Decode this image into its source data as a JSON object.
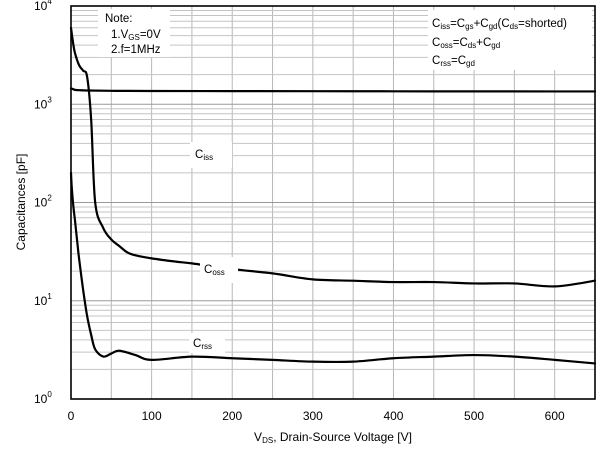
{
  "chart_data": {
    "type": "line",
    "xlabel": {
      "main": "V",
      "sub": "DS",
      "rest": ", Drain-Source Voltage [V]"
    },
    "ylabel": "Capacitances [pF]",
    "xlim": [
      0,
      650
    ],
    "ylim": [
      1,
      10000
    ],
    "log_y": true,
    "grid": true,
    "x_ticks": [
      "0",
      "100",
      "200",
      "300",
      "400",
      "500",
      "600"
    ],
    "y_ticks": [
      {
        "base": "10",
        "exp": "0"
      },
      {
        "base": "10",
        "exp": "1"
      },
      {
        "base": "10",
        "exp": "2"
      },
      {
        "base": "10",
        "exp": "3"
      },
      {
        "base": "10",
        "exp": "4"
      }
    ],
    "note": {
      "title": "Note:",
      "line1": {
        "prefix": "1.V",
        "sub": "GS",
        "suffix": "=0V"
      },
      "line2": "2.f=1MHz"
    },
    "formulas": [
      {
        "C": "C",
        "s1": "iss",
        "eq": "=C",
        "s2": "gs",
        "plus": "+C",
        "s3": "gd",
        "open": "(C",
        "s4": "ds",
        "close": "=shorted)"
      },
      {
        "C": "C",
        "s1": "oss",
        "eq": "=C",
        "s2": "ds",
        "plus": "+C",
        "s3": "gd"
      },
      {
        "C": "C",
        "s1": "rss",
        "eq": "=C",
        "s2": "gd"
      }
    ],
    "series": [
      {
        "name": {
          "main": "C",
          "sub": "iss"
        },
        "x": [
          0,
          1,
          3,
          5,
          10,
          20,
          50,
          100,
          200,
          300,
          400,
          500,
          600,
          650
        ],
        "y": [
          1450,
          1440,
          1420,
          1400,
          1390,
          1380,
          1370,
          1365,
          1360,
          1358,
          1355,
          1352,
          1350,
          1350
        ]
      },
      {
        "name": {
          "main": "C",
          "sub": "oss"
        },
        "x": [
          0,
          1,
          3,
          5,
          10,
          15,
          20,
          25,
          30,
          40,
          50,
          60,
          70,
          80,
          100,
          130,
          150,
          200,
          250,
          300,
          350,
          400,
          450,
          500,
          550,
          600,
          650
        ],
        "y": [
          6000,
          5200,
          4000,
          3300,
          2500,
          2200,
          1900,
          700,
          100,
          55,
          42,
          36,
          31,
          29,
          27,
          25,
          24,
          21,
          19,
          16.5,
          16,
          15.5,
          15.5,
          15,
          15,
          14,
          16
        ]
      },
      {
        "name": {
          "main": "C",
          "sub": "rss"
        },
        "x": [
          0,
          1,
          3,
          5,
          8,
          10,
          15,
          20,
          25,
          30,
          40,
          50,
          60,
          80,
          100,
          150,
          200,
          250,
          300,
          350,
          400,
          450,
          500,
          550,
          600,
          650
        ],
        "y": [
          200,
          140,
          90,
          65,
          38,
          27,
          13,
          7,
          4.5,
          3.2,
          2.7,
          2.9,
          3.1,
          2.8,
          2.5,
          2.7,
          2.6,
          2.5,
          2.4,
          2.4,
          2.6,
          2.7,
          2.8,
          2.7,
          2.5,
          2.3
        ]
      }
    ]
  }
}
